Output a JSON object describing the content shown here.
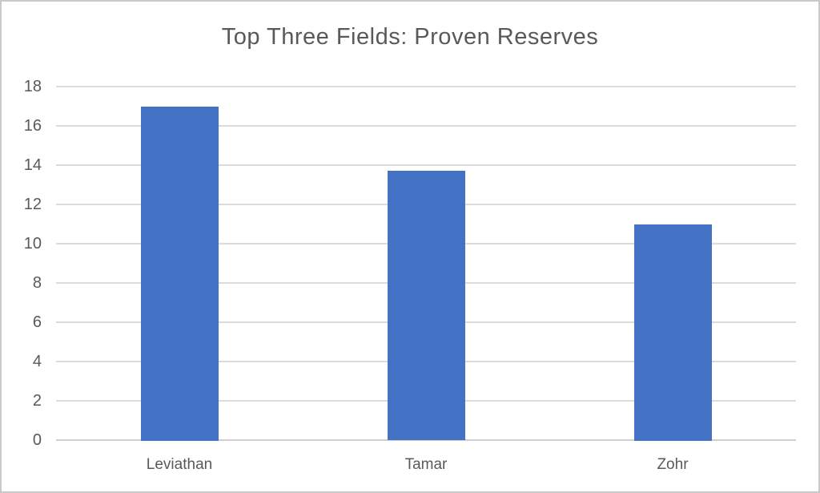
{
  "chart_data": {
    "type": "bar",
    "title": "Top Three Fields: Proven Reserves",
    "categories": [
      "Leviathan",
      "Tamar",
      "Zohr"
    ],
    "values": [
      17,
      13.7,
      11
    ],
    "xlabel": "",
    "ylabel": "",
    "ylim": [
      0,
      18
    ],
    "ytick_step": 2,
    "ytick_labels": [
      "0",
      "2",
      "4",
      "6",
      "8",
      "10",
      "12",
      "14",
      "16",
      "18"
    ],
    "grid": true,
    "legend": "none",
    "colors": {
      "bar": "#4472C4",
      "text": "#595959",
      "gridline": "#DBDBDE",
      "axis_line": "#CFCFD2",
      "background": "#FFFFFF",
      "border": "#C9C9C9"
    }
  }
}
